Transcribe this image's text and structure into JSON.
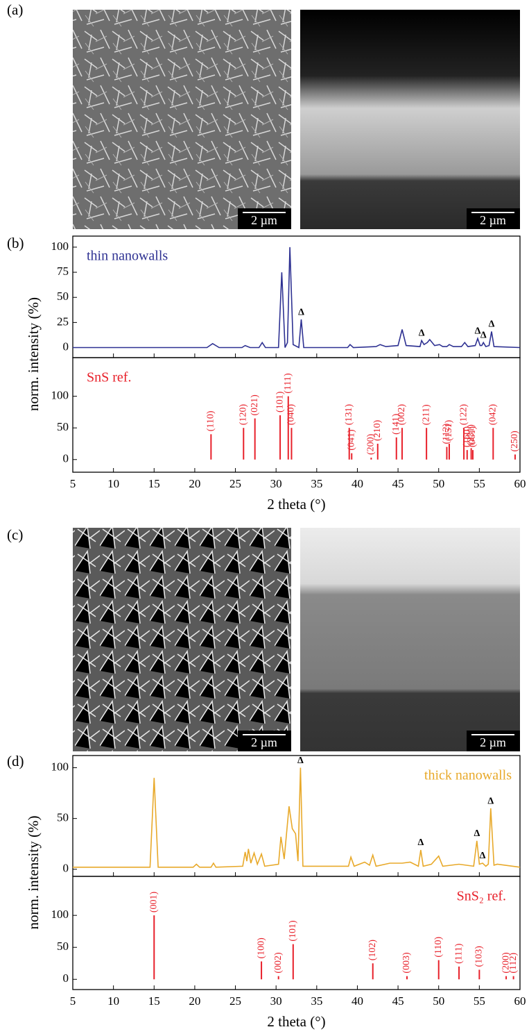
{
  "panels": [
    "(a)",
    "(b)",
    "(c)",
    "(d)"
  ],
  "images": [
    {
      "scale_bar": "2 µm"
    },
    {
      "scale_bar": "2 µm"
    },
    {
      "scale_bar": "2 µm"
    },
    {
      "scale_bar": "2 µm"
    }
  ],
  "chart_data": [
    {
      "type": "line",
      "ylabel": "norm. intensity (%)",
      "legend": "upper left",
      "xlim": [
        5,
        60
      ],
      "xticks": [
        5,
        10,
        15,
        20,
        25,
        30,
        35,
        40,
        45,
        50,
        55,
        60
      ],
      "ylim": [
        -10,
        111
      ],
      "yticks": [
        0,
        25,
        50,
        75,
        100
      ],
      "x": [
        5,
        21.5,
        22.2,
        23,
        25.8,
        26.2,
        26.8,
        27.9,
        28.3,
        28.7,
        30.3,
        30.7,
        31.1,
        31.4,
        31.7,
        32.1,
        32.8,
        33.1,
        33.4,
        38.8,
        39.1,
        39.5,
        42.3,
        42.8,
        43.5,
        45.0,
        45.5,
        46.0,
        47.7,
        47.9,
        48.2,
        48.6,
        48.9,
        49.5,
        50.1,
        50.5,
        51.0,
        51.3,
        51.8,
        52.8,
        53.2,
        53.6,
        54.5,
        54.8,
        55.1,
        55.3,
        55.5,
        55.8,
        56.2,
        56.5,
        56.8,
        60
      ],
      "series": [
        {
          "name": "thin nanowalls",
          "color": "#2e3192",
          "values": [
            0,
            0,
            4,
            0,
            0,
            2,
            0,
            0,
            5,
            0,
            0,
            75,
            0,
            5,
            100,
            3,
            0,
            28,
            0,
            0,
            3,
            0,
            1,
            3,
            1,
            2,
            18,
            2,
            1,
            7,
            3,
            5,
            8,
            2,
            3,
            1,
            1,
            3,
            1,
            1,
            5,
            1,
            2,
            9,
            2,
            2,
            5,
            1,
            2,
            16,
            1,
            0
          ]
        }
      ],
      "annotations": [
        {
          "text": "Δ",
          "x": 33.1,
          "y": 28
        },
        {
          "text": "Δ",
          "x": 47.9,
          "y": 7
        },
        {
          "text": "Δ",
          "x": 54.8,
          "y": 9
        },
        {
          "text": "Δ",
          "x": 55.5,
          "y": 5
        },
        {
          "text": "Δ",
          "x": 56.5,
          "y": 16
        }
      ]
    },
    {
      "type": "stick",
      "label": "SnS ref.",
      "color": "#e8202a",
      "xlabel": "2 theta (°)",
      "xlim": [
        5,
        60
      ],
      "xticks": [
        5,
        10,
        15,
        20,
        25,
        30,
        35,
        40,
        45,
        50,
        55,
        60
      ],
      "ylim": [
        -20,
        161
      ],
      "yticks": [
        0,
        50,
        100
      ],
      "x": [
        22.0,
        26.0,
        27.4,
        30.5,
        31.5,
        31.9,
        39.0,
        39.3,
        41.7,
        42.5,
        44.8,
        45.5,
        48.5,
        51.0,
        51.3,
        53.1,
        53.5,
        54.0,
        54.2,
        56.7,
        59.4
      ],
      "values": [
        40,
        50,
        65,
        70,
        100,
        50,
        50,
        10,
        3,
        25,
        35,
        50,
        50,
        20,
        25,
        50,
        15,
        18,
        15,
        50,
        8
      ],
      "labels": [
        "(110)",
        "(120)",
        "(021)",
        "(101)",
        "(111)",
        "(040)",
        "(131)",
        "(041)",
        "(200)",
        "(210)",
        "(141)",
        "(002)",
        "(211)",
        "(112)",
        "(151)",
        "(122)",
        "(160)",
        "(231)",
        "(061)",
        "(042)",
        "(250)"
      ]
    },
    {
      "type": "line",
      "ylabel": "norm. intensity (%)",
      "legend": "upper right",
      "xlim": [
        5,
        60
      ],
      "xticks": [
        5,
        10,
        15,
        20,
        25,
        30,
        35,
        40,
        45,
        50,
        55,
        60
      ],
      "ylim": [
        -7,
        112
      ],
      "yticks": [
        0,
        50,
        100
      ],
      "x": [
        5,
        14.5,
        15.0,
        15.5,
        19.8,
        20.2,
        20.6,
        22.0,
        22.3,
        22.6,
        25.9,
        26.2,
        26.4,
        26.6,
        26.9,
        27.3,
        27.7,
        28.2,
        28.6,
        30.3,
        30.6,
        31.0,
        31.6,
        32.0,
        32.4,
        32.7,
        33.0,
        33.3,
        38.9,
        39.2,
        39.6,
        40.9,
        41.5,
        41.9,
        42.3,
        44.0,
        45.5,
        46.5,
        47.5,
        47.8,
        48.1,
        49.1,
        50.0,
        50.5,
        52.5,
        54.3,
        54.7,
        55.0,
        55.4,
        55.8,
        56.1,
        56.4,
        56.8,
        57.2,
        60
      ],
      "series": [
        {
          "name": "thick nanowalls",
          "color": "#e8a92a",
          "values": [
            2,
            2,
            90,
            2,
            2,
            5,
            2,
            2,
            6,
            2,
            3,
            17,
            8,
            20,
            6,
            16,
            5,
            15,
            3,
            5,
            32,
            10,
            62,
            40,
            35,
            8,
            100,
            3,
            3,
            12,
            3,
            7,
            4,
            14,
            3,
            6,
            6,
            7,
            3,
            19,
            3,
            5,
            13,
            3,
            5,
            3,
            28,
            5,
            6,
            3,
            5,
            60,
            4,
            5,
            2
          ]
        }
      ],
      "annotations": [
        {
          "text": "Δ",
          "x": 33.0,
          "y": 100
        },
        {
          "text": "Δ",
          "x": 47.8,
          "y": 19
        },
        {
          "text": "Δ",
          "x": 54.7,
          "y": 28
        },
        {
          "text": "Δ",
          "x": 55.4,
          "y": 6
        },
        {
          "text": "Δ",
          "x": 56.4,
          "y": 60
        }
      ]
    },
    {
      "type": "stick",
      "label": "SnS₂ ref.",
      "color": "#e8202a",
      "legend": "upper right",
      "xlabel": "2 theta (°)",
      "xlim": [
        5,
        60
      ],
      "xticks": [
        5,
        10,
        15,
        20,
        25,
        30,
        35,
        40,
        45,
        50,
        55,
        60
      ],
      "ylim": [
        -16,
        161
      ],
      "yticks": [
        0,
        50,
        100
      ],
      "x": [
        15.0,
        28.2,
        30.3,
        32.1,
        41.9,
        46.1,
        50.0,
        52.5,
        55.0,
        58.3,
        59.2
      ],
      "values": [
        100,
        28,
        5,
        55,
        25,
        5,
        30,
        20,
        15,
        5,
        5
      ],
      "labels": [
        "(001)",
        "(100)",
        "(002)",
        "(101)",
        "(102)",
        "(003)",
        "(110)",
        "(111)",
        "(103)",
        "(200)",
        "(112)"
      ]
    }
  ]
}
